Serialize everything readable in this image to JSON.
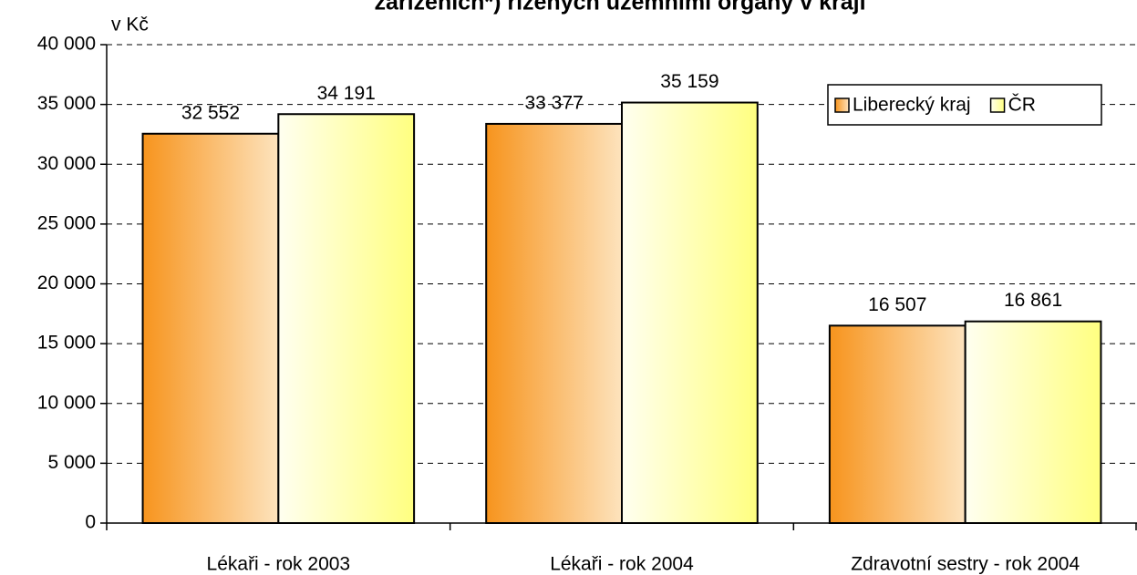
{
  "chart_data": {
    "type": "bar",
    "title": "zařízeních*) řízených územními orgány v kraji",
    "y_label": "v Kč",
    "categories": [
      "Lékaři - rok 2003",
      "Lékaři - rok 2004",
      "Zdravotní sestry - rok 2004"
    ],
    "series": [
      {
        "name": "Liberecký kraj",
        "color": "#f7941d",
        "values": [
          32552,
          33377,
          16507
        ],
        "value_labels": [
          "32 552",
          "33 377",
          "16 507"
        ]
      },
      {
        "name": "ČR",
        "color": "#ffff80",
        "values": [
          34191,
          35159,
          16861
        ],
        "value_labels": [
          "34 191",
          "35 159",
          "16 861"
        ]
      }
    ],
    "ylim": [
      0,
      40000
    ],
    "yticks": [
      0,
      {
        "value": 5000,
        "label": "5 000"
      },
      {
        "value": 10000,
        "label": "10 000"
      },
      {
        "value": 15000,
        "label": "15 000"
      },
      {
        "value": 20000,
        "label": "20 000"
      },
      {
        "value": 25000,
        "label": "25 000"
      },
      {
        "value": 30000,
        "label": "30 000"
      },
      {
        "value": 35000,
        "label": "35 000"
      },
      {
        "value": 40000,
        "label": "40 000"
      }
    ],
    "grid": true,
    "legend": "upper right"
  }
}
